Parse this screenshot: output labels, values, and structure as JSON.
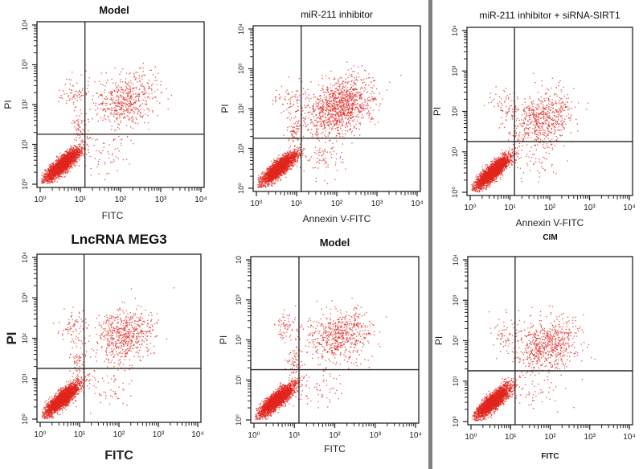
{
  "figure": {
    "description": "Six flow cytometry apoptosis dot plots (Annexin V-FITC vs PI) arranged in a 2x3 grid",
    "separator_color": "#7f7f7f",
    "dot_color": "#e0251e"
  },
  "chart_data": [
    {
      "type": "scatter",
      "panel": "top-left",
      "title": "Model",
      "title_bold": true,
      "xlabel": "FITC",
      "ylabel": "PI",
      "xscale": "log",
      "yscale": "log",
      "xlim": [
        1,
        10000
      ],
      "ylim": [
        1,
        10000
      ],
      "xticks": [
        "10⁰",
        "10¹",
        "10²",
        "10³",
        "10⁴"
      ],
      "yticks": [
        "10⁰",
        "10¹",
        "10²",
        "10³",
        "10⁴"
      ],
      "gate": {
        "x": 13,
        "y": 18
      },
      "populations": [
        {
          "name": "viable",
          "center": [
            3.5,
            3.2
          ],
          "spread": [
            0.22,
            0.2
          ],
          "count": 2600,
          "corr": 0.85
        },
        {
          "name": "late-apoptotic",
          "center": [
            140,
            130
          ],
          "spread": [
            0.38,
            0.33
          ],
          "count": 520,
          "corr": 0.2
        },
        {
          "name": "necrotic",
          "center": [
            7,
            200
          ],
          "spread": [
            0.2,
            0.2
          ],
          "count": 70,
          "corr": 0
        },
        {
          "name": "early-apoptotic",
          "center": [
            45,
            6
          ],
          "spread": [
            0.35,
            0.25
          ],
          "count": 60,
          "corr": 0
        },
        {
          "name": "transitional",
          "center": [
            9,
            30
          ],
          "spread": [
            0.12,
            0.22
          ],
          "count": 60,
          "corr": 0
        }
      ]
    },
    {
      "type": "scatter",
      "panel": "top-middle",
      "title": "miR-211 inhibitor",
      "title_bold": false,
      "xlabel": "Annexin V-FITC",
      "ylabel": "PI",
      "xscale": "log",
      "yscale": "log",
      "xlim": [
        1,
        10000
      ],
      "ylim": [
        1,
        10000
      ],
      "xticks": [
        "10⁰",
        "10¹",
        "10²",
        "10³",
        "10⁴"
      ],
      "yticks": [
        "10⁰",
        "10¹",
        "10²",
        "10³",
        "10⁴"
      ],
      "gate": {
        "x": 13,
        "y": 18
      },
      "populations": [
        {
          "name": "viable",
          "center": [
            3.5,
            3.2
          ],
          "spread": [
            0.22,
            0.2
          ],
          "count": 2600,
          "corr": 0.85
        },
        {
          "name": "late-apoptotic",
          "center": [
            120,
            110
          ],
          "spread": [
            0.42,
            0.36
          ],
          "count": 1100,
          "corr": 0.3
        },
        {
          "name": "necrotic",
          "center": [
            7,
            200
          ],
          "spread": [
            0.2,
            0.2
          ],
          "count": 70,
          "corr": 0
        },
        {
          "name": "early-apoptotic",
          "center": [
            45,
            6
          ],
          "spread": [
            0.35,
            0.25
          ],
          "count": 80,
          "corr": 0
        },
        {
          "name": "transitional",
          "center": [
            9,
            30
          ],
          "spread": [
            0.12,
            0.22
          ],
          "count": 70,
          "corr": 0
        }
      ]
    },
    {
      "type": "scatter",
      "panel": "top-right",
      "title": "miR-211 inhibitor + siRNA-SIRT1",
      "title_bold": false,
      "xlabel": "Annexin V-FITC",
      "ylabel": "PI",
      "xscale": "log",
      "yscale": "log",
      "xlim": [
        1,
        10000
      ],
      "ylim": [
        1,
        10000
      ],
      "xticks": [
        "10⁰",
        "10¹",
        "10²",
        "10³",
        "10⁴"
      ],
      "yticks": [
        "10⁰",
        "10¹",
        "10²",
        "10³",
        "10⁴"
      ],
      "gate": {
        "x": 13,
        "y": 18
      },
      "populations": [
        {
          "name": "viable",
          "center": [
            3.5,
            3.2
          ],
          "spread": [
            0.22,
            0.2
          ],
          "count": 2600,
          "corr": 0.85
        },
        {
          "name": "late-apoptotic",
          "center": [
            70,
            70
          ],
          "spread": [
            0.38,
            0.33
          ],
          "count": 600,
          "corr": 0.2
        },
        {
          "name": "necrotic",
          "center": [
            7,
            150
          ],
          "spread": [
            0.2,
            0.2
          ],
          "count": 60,
          "corr": 0
        },
        {
          "name": "early-apoptotic",
          "center": [
            40,
            6
          ],
          "spread": [
            0.35,
            0.25
          ],
          "count": 50,
          "corr": 0
        }
      ]
    },
    {
      "type": "scatter",
      "panel": "bottom-left",
      "title": "LncRNA MEG3",
      "title_bold": true,
      "title_large": true,
      "xlabel": "FITC",
      "ylabel": "PI",
      "labels_large": true,
      "xscale": "log",
      "yscale": "log",
      "xlim": [
        1,
        10000
      ],
      "ylim": [
        1,
        10000
      ],
      "xticks": [
        "10⁰",
        "10¹",
        "10²",
        "10³",
        "10⁴"
      ],
      "yticks": [
        "10⁰",
        "10¹",
        "10ᶻ",
        "10³",
        "10⁴"
      ],
      "gate": {
        "x": 13,
        "y": 18
      },
      "populations": [
        {
          "name": "viable",
          "center": [
            3.5,
            3.2
          ],
          "spread": [
            0.22,
            0.2
          ],
          "count": 2600,
          "corr": 0.85
        },
        {
          "name": "late-apoptotic",
          "center": [
            130,
            130
          ],
          "spread": [
            0.38,
            0.33
          ],
          "count": 600,
          "corr": 0.2
        },
        {
          "name": "necrotic",
          "center": [
            7,
            200
          ],
          "spread": [
            0.2,
            0.2
          ],
          "count": 70,
          "corr": 0
        },
        {
          "name": "early-apoptotic",
          "center": [
            45,
            6
          ],
          "spread": [
            0.35,
            0.25
          ],
          "count": 60,
          "corr": 0
        },
        {
          "name": "transitional",
          "center": [
            9,
            30
          ],
          "spread": [
            0.12,
            0.22
          ],
          "count": 60,
          "corr": 0
        }
      ]
    },
    {
      "type": "scatter",
      "panel": "bottom-middle",
      "title": "Model",
      "title_bold": true,
      "xlabel": "FITC",
      "ylabel": "PI",
      "xscale": "log",
      "yscale": "log",
      "xlim": [
        1,
        10000
      ],
      "ylim": [
        1,
        10000
      ],
      "xticks": [
        "10⁰",
        "10¹",
        "10²",
        "10³",
        "10⁴"
      ],
      "yticks": [
        "10⁰",
        "10¹",
        "10²",
        "10³",
        "10"
      ],
      "gate": {
        "x": 13,
        "y": 18
      },
      "populations": [
        {
          "name": "viable",
          "center": [
            3.5,
            3.2
          ],
          "spread": [
            0.22,
            0.2
          ],
          "count": 2600,
          "corr": 0.85
        },
        {
          "name": "late-apoptotic",
          "center": [
            130,
            130
          ],
          "spread": [
            0.38,
            0.33
          ],
          "count": 600,
          "corr": 0.2
        },
        {
          "name": "necrotic",
          "center": [
            7,
            200
          ],
          "spread": [
            0.2,
            0.2
          ],
          "count": 70,
          "corr": 0
        },
        {
          "name": "early-apoptotic",
          "center": [
            45,
            6
          ],
          "spread": [
            0.35,
            0.25
          ],
          "count": 60,
          "corr": 0
        },
        {
          "name": "transitional",
          "center": [
            9,
            30
          ],
          "spread": [
            0.12,
            0.22
          ],
          "count": 60,
          "corr": 0
        }
      ]
    },
    {
      "type": "scatter",
      "panel": "bottom-right",
      "title": "CIM",
      "title_bold": true,
      "title_small": true,
      "xlabel": "FITC",
      "xlabel_small_bold": true,
      "ylabel": "PI",
      "xscale": "log",
      "yscale": "log",
      "xlim": [
        1,
        10000
      ],
      "ylim": [
        1,
        10000
      ],
      "xticks": [
        "10⁰",
        "10¹",
        "10²",
        "10³",
        "10⁴"
      ],
      "yticks": [
        "10⁰",
        "10¹",
        "10²",
        "10³",
        "10⁴"
      ],
      "gate": {
        "x": 13,
        "y": 18
      },
      "populations": [
        {
          "name": "viable",
          "center": [
            3.5,
            3.2
          ],
          "spread": [
            0.22,
            0.2
          ],
          "count": 2600,
          "corr": 0.85
        },
        {
          "name": "late-apoptotic",
          "center": [
            80,
            80
          ],
          "spread": [
            0.4,
            0.33
          ],
          "count": 650,
          "corr": 0.2
        },
        {
          "name": "necrotic",
          "center": [
            7,
            150
          ],
          "spread": [
            0.2,
            0.2
          ],
          "count": 60,
          "corr": 0
        },
        {
          "name": "early-apoptotic",
          "center": [
            40,
            6
          ],
          "spread": [
            0.35,
            0.25
          ],
          "count": 50,
          "corr": 0
        }
      ]
    }
  ]
}
